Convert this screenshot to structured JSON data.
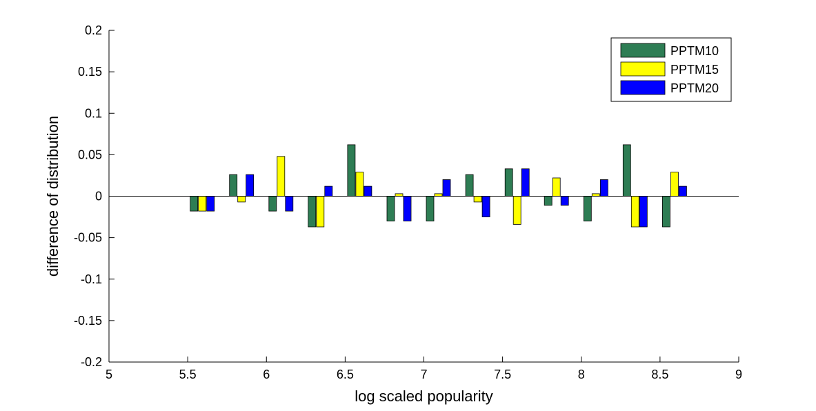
{
  "chart_data": {
    "type": "bar",
    "title": "",
    "xlabel": "log scaled popularity",
    "ylabel": "difference of distribution",
    "xlim": [
      5,
      9
    ],
    "ylim": [
      -0.2,
      0.2
    ],
    "xticks": [
      5,
      5.5,
      6,
      6.5,
      7,
      7.5,
      8,
      8.5,
      9
    ],
    "xtick_labels": [
      "5",
      "5.5",
      "6",
      "6.5",
      "7",
      "7.5",
      "8",
      "8.5",
      "9"
    ],
    "yticks": [
      -0.2,
      -0.15,
      -0.1,
      -0.05,
      0,
      0.05,
      0.1,
      0.15,
      0.2
    ],
    "ytick_labels": [
      "-0.2",
      "-0.15",
      "-0.1",
      "-0.05",
      "0",
      "0.05",
      "0.1",
      "0.15",
      "0.2"
    ],
    "grid": false,
    "legend_position": "top-right",
    "categories": [
      5.625,
      5.875,
      6.125,
      6.375,
      6.625,
      6.875,
      7.125,
      7.375,
      7.625,
      7.875,
      8.125,
      8.375,
      8.625
    ],
    "series": [
      {
        "name": "PPTM10",
        "color": "#2e7d54",
        "values": [
          -0.018,
          0.026,
          -0.018,
          -0.037,
          0.062,
          -0.03,
          -0.03,
          0.026,
          0.033,
          -0.011,
          -0.03,
          0.062,
          -0.037
        ]
      },
      {
        "name": "PPTM15",
        "color": "#ffff00",
        "values": [
          -0.018,
          -0.007,
          0.048,
          -0.037,
          0.029,
          0.003,
          0.003,
          -0.007,
          -0.034,
          0.022,
          0.003,
          -0.037,
          0.029
        ]
      },
      {
        "name": "PPTM20",
        "color": "#0000ff",
        "values": [
          -0.018,
          0.026,
          -0.018,
          0.012,
          0.012,
          -0.03,
          0.02,
          -0.025,
          0.033,
          -0.011,
          0.02,
          -0.037,
          0.012
        ]
      }
    ]
  }
}
